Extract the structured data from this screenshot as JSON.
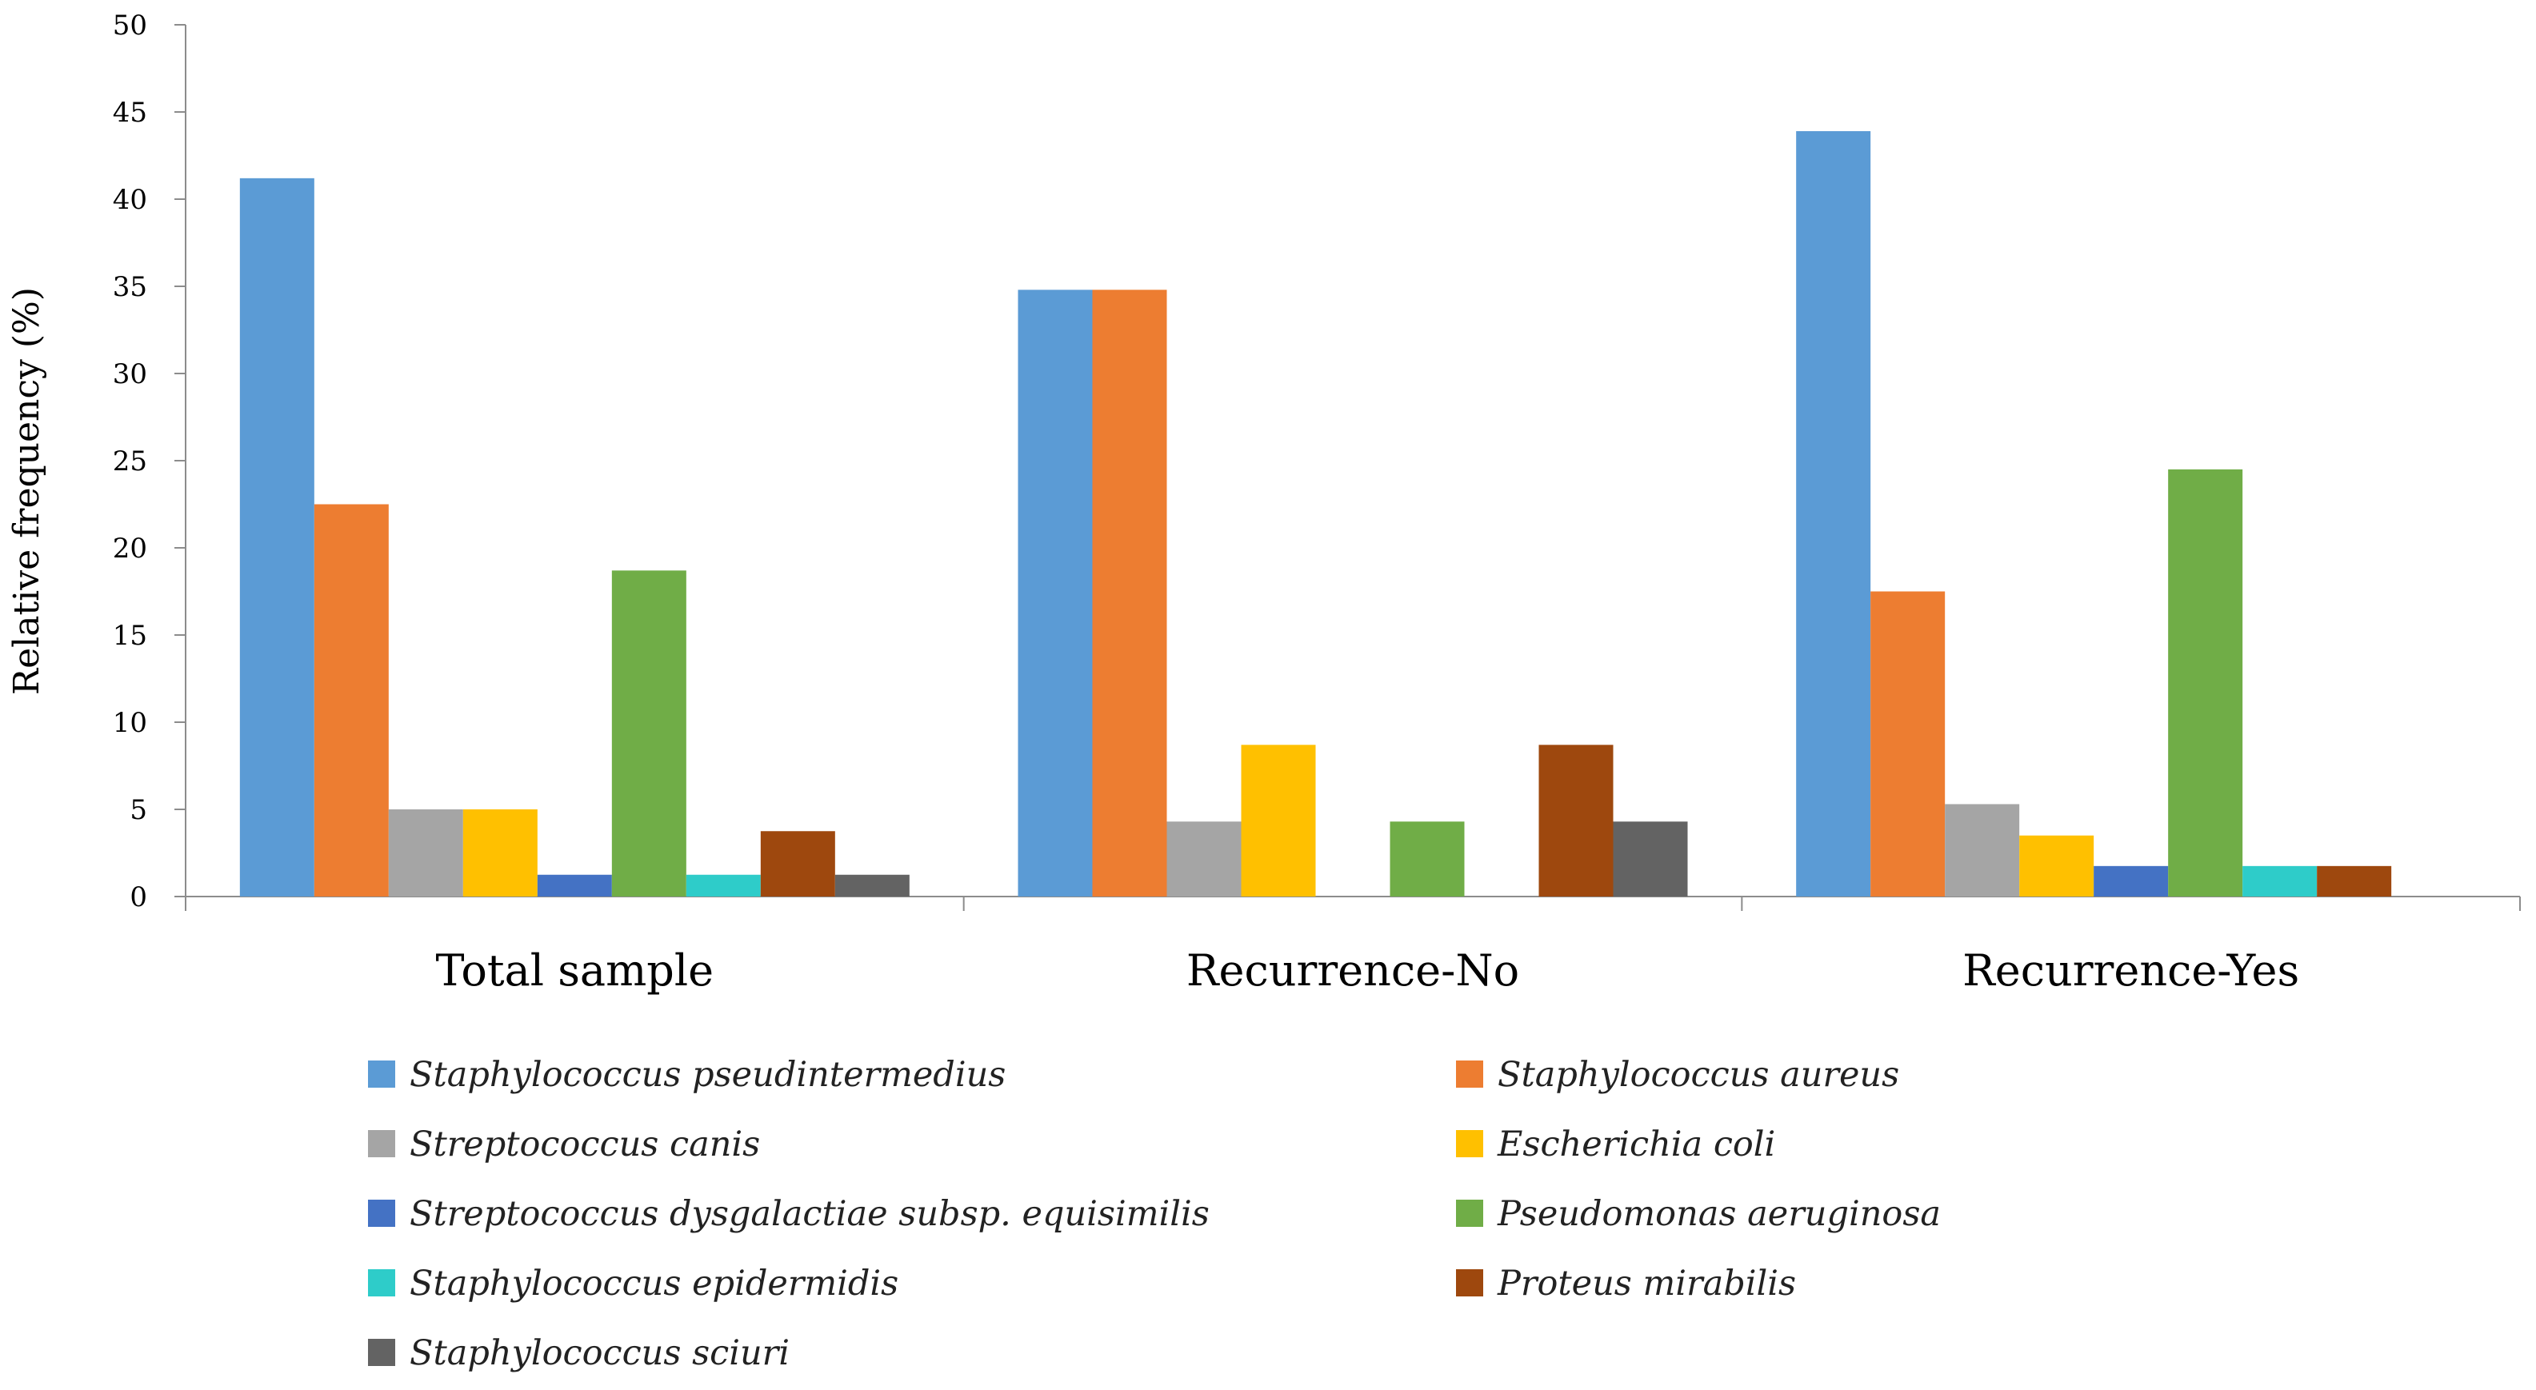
{
  "chart_data": {
    "type": "bar",
    "title": "",
    "xlabel": "",
    "ylabel": "Relative frequency (%)",
    "ylim": [
      0,
      50
    ],
    "yticks": [
      "0",
      "5",
      "10",
      "15",
      "20",
      "25",
      "30",
      "35",
      "40",
      "45",
      "50"
    ],
    "grid": false,
    "legend_position": "bottom",
    "categories": [
      "Total sample",
      "Recurrence-No",
      "Recurrence-Yes"
    ],
    "series": [
      {
        "name": "Staphylococcus pseudintermedius",
        "color": "#5B9BD5",
        "values": [
          41.2,
          34.8,
          43.9
        ]
      },
      {
        "name": "Staphylococcus aureus",
        "color": "#ED7D31",
        "values": [
          22.5,
          34.8,
          17.5
        ]
      },
      {
        "name": "Streptococcus canis",
        "color": "#A5A5A5",
        "values": [
          5.0,
          4.3,
          5.3
        ]
      },
      {
        "name": "Escherichia coli",
        "color": "#FFC000",
        "values": [
          5.0,
          8.7,
          3.5
        ]
      },
      {
        "name": "Streptococcus dysgalactiae subsp. equisimilis",
        "color": "#4472C4",
        "values": [
          1.25,
          0,
          1.75
        ]
      },
      {
        "name": "Pseudomonas aeruginosa",
        "color": "#70AD47",
        "values": [
          18.7,
          4.3,
          24.5
        ]
      },
      {
        "name": "Staphylococcus epidermidis",
        "color": "#2ECCC9",
        "values": [
          1.25,
          0,
          1.75
        ]
      },
      {
        "name": "Proteus mirabilis",
        "color": "#9E480E",
        "values": [
          3.75,
          8.7,
          1.75
        ]
      },
      {
        "name": "Staphylococcus sciuri",
        "color": "#636363",
        "values": [
          1.25,
          4.3,
          0
        ]
      }
    ]
  }
}
